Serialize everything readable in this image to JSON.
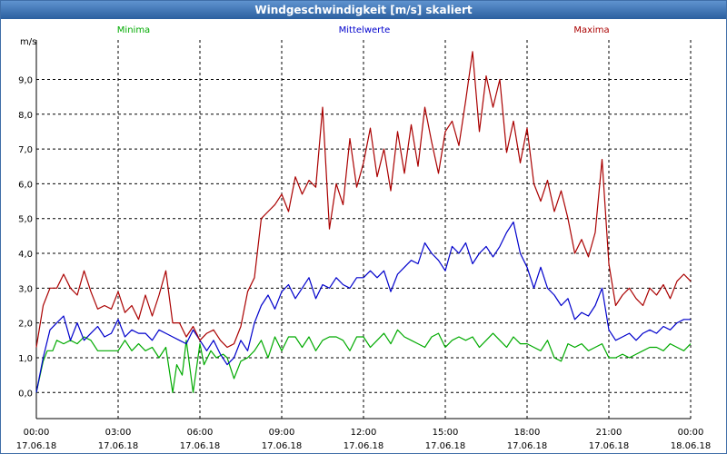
{
  "window": {
    "title": "Windgeschwindigkeit [m/s] skaliert"
  },
  "colors": {
    "min": "#00aa00",
    "avg": "#0000cc",
    "max": "#aa0000",
    "axis": "#000000",
    "grid": "#000000",
    "titlebar": "#3a6db0"
  },
  "chart_data": {
    "type": "line",
    "title": "Windgeschwindigkeit [m/s] skaliert",
    "ylabel": "m/s",
    "xlabel": "",
    "ylim": [
      -0.75,
      10.5
    ],
    "xlim": [
      0,
      24
    ],
    "grid": true,
    "y_ticks": [
      {
        "value": 0,
        "label": "0,0"
      },
      {
        "value": 1,
        "label": "1,0"
      },
      {
        "value": 2,
        "label": "2,0"
      },
      {
        "value": 3,
        "label": "3,0"
      },
      {
        "value": 4,
        "label": "4,0"
      },
      {
        "value": 5,
        "label": "5,0"
      },
      {
        "value": 6,
        "label": "6,0"
      },
      {
        "value": 7,
        "label": "7,0"
      },
      {
        "value": 8,
        "label": "8,0"
      },
      {
        "value": 9,
        "label": "9,0"
      }
    ],
    "x_ticks": [
      {
        "value": 0,
        "time": "00:00",
        "date": "17.06.18"
      },
      {
        "value": 3,
        "time": "03:00",
        "date": "17.06.18"
      },
      {
        "value": 6,
        "time": "06:00",
        "date": "17.06.18"
      },
      {
        "value": 9,
        "time": "09:00",
        "date": "17.06.18"
      },
      {
        "value": 12,
        "time": "12:00",
        "date": "17.06.18"
      },
      {
        "value": 15,
        "time": "15:00",
        "date": "17.06.18"
      },
      {
        "value": 18,
        "time": "18:00",
        "date": "17.06.18"
      },
      {
        "value": 21,
        "time": "21:00",
        "date": "17.06.18"
      },
      {
        "value": 24,
        "time": "00:00",
        "date": "18.06.18"
      }
    ],
    "legend": [
      {
        "name": "Minima",
        "position": "top-left"
      },
      {
        "name": "Mittelwerte",
        "position": "top-center"
      },
      {
        "name": "Maxima",
        "position": "top-right"
      }
    ],
    "series": [
      {
        "name": "Minima",
        "color": "#00aa00",
        "points": [
          [
            0.0,
            0.0
          ],
          [
            0.25,
            0.9
          ],
          [
            0.4,
            1.2
          ],
          [
            0.6,
            1.2
          ],
          [
            0.75,
            1.5
          ],
          [
            1.0,
            1.4
          ],
          [
            1.25,
            1.5
          ],
          [
            1.5,
            1.4
          ],
          [
            1.75,
            1.6
          ],
          [
            2.0,
            1.5
          ],
          [
            2.25,
            1.2
          ],
          [
            2.5,
            1.2
          ],
          [
            2.75,
            1.2
          ],
          [
            3.0,
            1.2
          ],
          [
            3.25,
            1.5
          ],
          [
            3.5,
            1.2
          ],
          [
            3.75,
            1.4
          ],
          [
            4.0,
            1.2
          ],
          [
            4.25,
            1.3
          ],
          [
            4.5,
            1.0
          ],
          [
            4.75,
            1.3
          ],
          [
            5.0,
            0.0
          ],
          [
            5.15,
            0.8
          ],
          [
            5.35,
            0.5
          ],
          [
            5.5,
            1.5
          ],
          [
            5.75,
            0.0
          ],
          [
            6.0,
            1.4
          ],
          [
            6.15,
            0.8
          ],
          [
            6.4,
            1.2
          ],
          [
            6.6,
            1.0
          ],
          [
            6.85,
            1.1
          ],
          [
            7.0,
            1.0
          ],
          [
            7.25,
            0.4
          ],
          [
            7.5,
            0.9
          ],
          [
            7.75,
            1.0
          ],
          [
            8.0,
            1.2
          ],
          [
            8.25,
            1.5
          ],
          [
            8.5,
            1.0
          ],
          [
            8.75,
            1.6
          ],
          [
            9.0,
            1.2
          ],
          [
            9.25,
            1.6
          ],
          [
            9.5,
            1.6
          ],
          [
            9.75,
            1.3
          ],
          [
            10.0,
            1.6
          ],
          [
            10.25,
            1.2
          ],
          [
            10.5,
            1.5
          ],
          [
            10.75,
            1.6
          ],
          [
            11.0,
            1.6
          ],
          [
            11.25,
            1.5
          ],
          [
            11.5,
            1.2
          ],
          [
            11.75,
            1.6
          ],
          [
            12.0,
            1.6
          ],
          [
            12.25,
            1.3
          ],
          [
            12.5,
            1.5
          ],
          [
            12.75,
            1.7
          ],
          [
            13.0,
            1.4
          ],
          [
            13.25,
            1.8
          ],
          [
            13.5,
            1.6
          ],
          [
            13.75,
            1.5
          ],
          [
            14.0,
            1.4
          ],
          [
            14.25,
            1.3
          ],
          [
            14.5,
            1.6
          ],
          [
            14.75,
            1.7
          ],
          [
            15.0,
            1.3
          ],
          [
            15.25,
            1.5
          ],
          [
            15.5,
            1.6
          ],
          [
            15.75,
            1.5
          ],
          [
            16.0,
            1.6
          ],
          [
            16.25,
            1.3
          ],
          [
            16.5,
            1.5
          ],
          [
            16.75,
            1.7
          ],
          [
            17.0,
            1.5
          ],
          [
            17.25,
            1.3
          ],
          [
            17.5,
            1.6
          ],
          [
            17.75,
            1.4
          ],
          [
            18.0,
            1.4
          ],
          [
            18.25,
            1.3
          ],
          [
            18.5,
            1.2
          ],
          [
            18.75,
            1.5
          ],
          [
            19.0,
            1.0
          ],
          [
            19.25,
            0.9
          ],
          [
            19.5,
            1.4
          ],
          [
            19.75,
            1.3
          ],
          [
            20.0,
            1.4
          ],
          [
            20.25,
            1.2
          ],
          [
            20.5,
            1.3
          ],
          [
            20.75,
            1.4
          ],
          [
            21.0,
            1.0
          ],
          [
            21.25,
            1.0
          ],
          [
            21.5,
            1.1
          ],
          [
            21.75,
            1.0
          ],
          [
            22.0,
            1.1
          ],
          [
            22.25,
            1.2
          ],
          [
            22.5,
            1.3
          ],
          [
            22.75,
            1.3
          ],
          [
            23.0,
            1.2
          ],
          [
            23.25,
            1.4
          ],
          [
            23.5,
            1.3
          ],
          [
            23.75,
            1.2
          ],
          [
            24.0,
            1.4
          ]
        ]
      },
      {
        "name": "Mittelwerte",
        "color": "#0000cc",
        "points": [
          [
            0.0,
            0.0
          ],
          [
            0.25,
            1.0
          ],
          [
            0.5,
            1.8
          ],
          [
            0.75,
            2.0
          ],
          [
            1.0,
            2.2
          ],
          [
            1.25,
            1.5
          ],
          [
            1.5,
            2.0
          ],
          [
            1.75,
            1.5
          ],
          [
            2.0,
            1.7
          ],
          [
            2.25,
            1.9
          ],
          [
            2.5,
            1.6
          ],
          [
            2.75,
            1.7
          ],
          [
            3.0,
            2.1
          ],
          [
            3.25,
            1.6
          ],
          [
            3.5,
            1.8
          ],
          [
            3.75,
            1.7
          ],
          [
            4.0,
            1.7
          ],
          [
            4.25,
            1.5
          ],
          [
            4.5,
            1.8
          ],
          [
            4.75,
            1.7
          ],
          [
            5.0,
            1.6
          ],
          [
            5.25,
            1.5
          ],
          [
            5.5,
            1.4
          ],
          [
            5.75,
            1.8
          ],
          [
            6.0,
            1.5
          ],
          [
            6.25,
            1.2
          ],
          [
            6.5,
            1.5
          ],
          [
            6.75,
            1.1
          ],
          [
            7.0,
            0.8
          ],
          [
            7.25,
            1.0
          ],
          [
            7.5,
            1.5
          ],
          [
            7.75,
            1.2
          ],
          [
            8.0,
            2.0
          ],
          [
            8.25,
            2.5
          ],
          [
            8.5,
            2.8
          ],
          [
            8.75,
            2.4
          ],
          [
            9.0,
            2.9
          ],
          [
            9.25,
            3.1
          ],
          [
            9.5,
            2.7
          ],
          [
            9.75,
            3.0
          ],
          [
            10.0,
            3.3
          ],
          [
            10.25,
            2.7
          ],
          [
            10.5,
            3.1
          ],
          [
            10.75,
            3.0
          ],
          [
            11.0,
            3.3
          ],
          [
            11.25,
            3.1
          ],
          [
            11.5,
            3.0
          ],
          [
            11.75,
            3.3
          ],
          [
            12.0,
            3.3
          ],
          [
            12.25,
            3.5
          ],
          [
            12.5,
            3.3
          ],
          [
            12.75,
            3.5
          ],
          [
            13.0,
            2.9
          ],
          [
            13.25,
            3.4
          ],
          [
            13.5,
            3.6
          ],
          [
            13.75,
            3.8
          ],
          [
            14.0,
            3.7
          ],
          [
            14.25,
            4.3
          ],
          [
            14.5,
            4.0
          ],
          [
            14.75,
            3.8
          ],
          [
            15.0,
            3.5
          ],
          [
            15.25,
            4.2
          ],
          [
            15.5,
            4.0
          ],
          [
            15.75,
            4.3
          ],
          [
            16.0,
            3.7
          ],
          [
            16.25,
            4.0
          ],
          [
            16.5,
            4.2
          ],
          [
            16.75,
            3.9
          ],
          [
            17.0,
            4.2
          ],
          [
            17.25,
            4.6
          ],
          [
            17.5,
            4.9
          ],
          [
            17.75,
            4.0
          ],
          [
            18.0,
            3.6
          ],
          [
            18.25,
            3.0
          ],
          [
            18.5,
            3.6
          ],
          [
            18.75,
            3.0
          ],
          [
            19.0,
            2.8
          ],
          [
            19.25,
            2.5
          ],
          [
            19.5,
            2.7
          ],
          [
            19.75,
            2.1
          ],
          [
            20.0,
            2.3
          ],
          [
            20.25,
            2.2
          ],
          [
            20.5,
            2.5
          ],
          [
            20.75,
            3.0
          ],
          [
            21.0,
            1.8
          ],
          [
            21.25,
            1.5
          ],
          [
            21.5,
            1.6
          ],
          [
            21.75,
            1.7
          ],
          [
            22.0,
            1.5
          ],
          [
            22.25,
            1.7
          ],
          [
            22.5,
            1.8
          ],
          [
            22.75,
            1.7
          ],
          [
            23.0,
            1.9
          ],
          [
            23.25,
            1.8
          ],
          [
            23.5,
            2.0
          ],
          [
            23.75,
            2.1
          ],
          [
            24.0,
            2.1
          ]
        ]
      },
      {
        "name": "Maxima",
        "color": "#aa0000",
        "points": [
          [
            0.0,
            1.3
          ],
          [
            0.25,
            2.5
          ],
          [
            0.5,
            3.0
          ],
          [
            0.75,
            3.0
          ],
          [
            1.0,
            3.4
          ],
          [
            1.25,
            3.0
          ],
          [
            1.5,
            2.8
          ],
          [
            1.75,
            3.5
          ],
          [
            2.0,
            2.9
          ],
          [
            2.25,
            2.4
          ],
          [
            2.5,
            2.5
          ],
          [
            2.75,
            2.4
          ],
          [
            3.0,
            2.9
          ],
          [
            3.25,
            2.3
          ],
          [
            3.5,
            2.5
          ],
          [
            3.75,
            2.1
          ],
          [
            4.0,
            2.8
          ],
          [
            4.25,
            2.2
          ],
          [
            4.5,
            2.8
          ],
          [
            4.75,
            3.5
          ],
          [
            5.0,
            2.0
          ],
          [
            5.25,
            2.0
          ],
          [
            5.5,
            1.6
          ],
          [
            5.75,
            1.9
          ],
          [
            6.0,
            1.5
          ],
          [
            6.25,
            1.7
          ],
          [
            6.5,
            1.8
          ],
          [
            6.75,
            1.5
          ],
          [
            7.0,
            1.3
          ],
          [
            7.25,
            1.4
          ],
          [
            7.5,
            1.9
          ],
          [
            7.75,
            2.9
          ],
          [
            8.0,
            3.3
          ],
          [
            8.25,
            5.0
          ],
          [
            8.5,
            5.2
          ],
          [
            8.75,
            5.4
          ],
          [
            9.0,
            5.7
          ],
          [
            9.25,
            5.2
          ],
          [
            9.5,
            6.2
          ],
          [
            9.75,
            5.7
          ],
          [
            10.0,
            6.1
          ],
          [
            10.25,
            5.9
          ],
          [
            10.5,
            8.2
          ],
          [
            10.75,
            4.7
          ],
          [
            11.0,
            6.0
          ],
          [
            11.25,
            5.4
          ],
          [
            11.5,
            7.3
          ],
          [
            11.75,
            5.9
          ],
          [
            12.0,
            6.6
          ],
          [
            12.25,
            7.6
          ],
          [
            12.5,
            6.2
          ],
          [
            12.75,
            7.0
          ],
          [
            13.0,
            5.8
          ],
          [
            13.25,
            7.5
          ],
          [
            13.5,
            6.3
          ],
          [
            13.75,
            7.7
          ],
          [
            14.0,
            6.5
          ],
          [
            14.25,
            8.2
          ],
          [
            14.5,
            7.2
          ],
          [
            14.75,
            6.3
          ],
          [
            15.0,
            7.5
          ],
          [
            15.25,
            7.8
          ],
          [
            15.5,
            7.1
          ],
          [
            15.75,
            8.4
          ],
          [
            16.0,
            9.8
          ],
          [
            16.25,
            7.5
          ],
          [
            16.5,
            9.1
          ],
          [
            16.75,
            8.2
          ],
          [
            17.0,
            9.0
          ],
          [
            17.25,
            6.9
          ],
          [
            17.5,
            7.8
          ],
          [
            17.75,
            6.6
          ],
          [
            18.0,
            7.6
          ],
          [
            18.25,
            6.0
          ],
          [
            18.5,
            5.5
          ],
          [
            18.75,
            6.1
          ],
          [
            19.0,
            5.2
          ],
          [
            19.25,
            5.8
          ],
          [
            19.5,
            5.0
          ],
          [
            19.75,
            4.0
          ],
          [
            20.0,
            4.4
          ],
          [
            20.25,
            3.9
          ],
          [
            20.5,
            4.6
          ],
          [
            20.75,
            6.7
          ],
          [
            21.0,
            3.7
          ],
          [
            21.25,
            2.5
          ],
          [
            21.5,
            2.8
          ],
          [
            21.75,
            3.0
          ],
          [
            22.0,
            2.7
          ],
          [
            22.25,
            2.5
          ],
          [
            22.5,
            3.0
          ],
          [
            22.75,
            2.8
          ],
          [
            23.0,
            3.1
          ],
          [
            23.25,
            2.7
          ],
          [
            23.5,
            3.2
          ],
          [
            23.75,
            3.4
          ],
          [
            24.0,
            3.2
          ]
        ]
      }
    ]
  }
}
